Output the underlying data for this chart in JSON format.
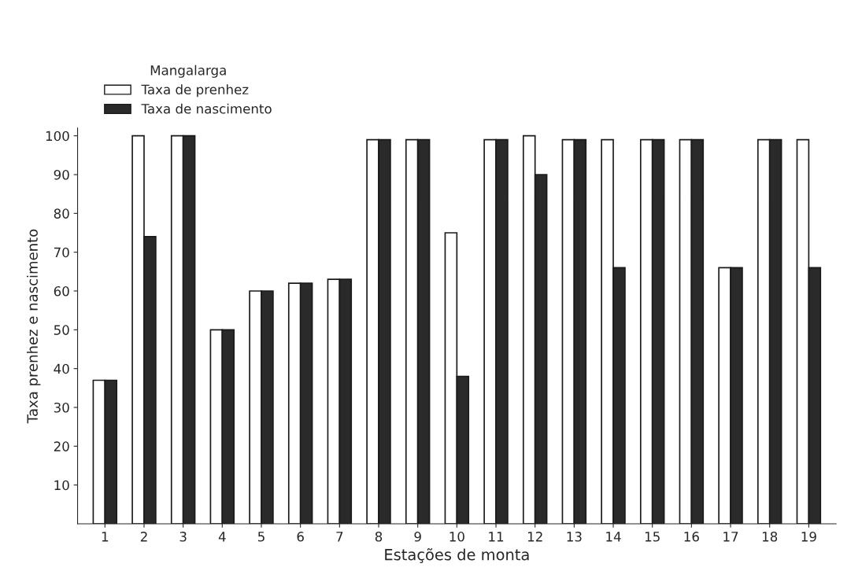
{
  "chart_data": {
    "type": "bar",
    "xlabel": "Estações de monta",
    "ylabel": "Taxa prenhez e nascimento",
    "legend_title": "Mangalarga",
    "categories": [
      "1",
      "2",
      "3",
      "4",
      "5",
      "6",
      "7",
      "8",
      "9",
      "10",
      "11",
      "12",
      "13",
      "14",
      "15",
      "16",
      "17",
      "18",
      "19"
    ],
    "series": [
      {
        "name": "Taxa de prenhez",
        "color": "#ffffff",
        "values": [
          37,
          100,
          100,
          50,
          60,
          62,
          63,
          99,
          99,
          75,
          99,
          100,
          99,
          99,
          99,
          99,
          66,
          99,
          99
        ]
      },
      {
        "name": "Taxa de nascimento",
        "color": "#2a2a2a",
        "values": [
          37,
          74,
          100,
          50,
          60,
          62,
          63,
          99,
          99,
          38,
          99,
          90,
          99,
          66,
          99,
          99,
          66,
          99,
          66
        ]
      }
    ],
    "ylim": [
      0,
      102
    ],
    "yticks": [
      10,
      20,
      30,
      40,
      50,
      60,
      70,
      80,
      90,
      100
    ],
    "grid": false,
    "legend": "top left"
  }
}
